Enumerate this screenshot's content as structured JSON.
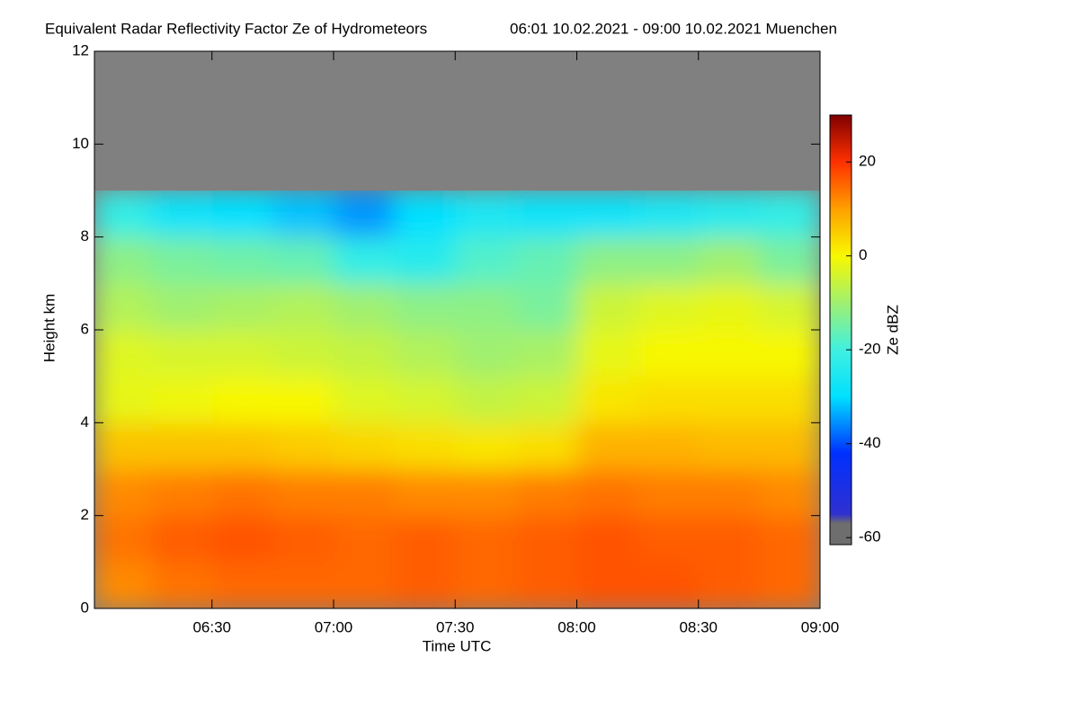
{
  "chart_data": {
    "type": "heatmap",
    "title": "Equivalent Radar Reflectivity Factor Ze of Hydrometeors",
    "subtitle": "06:01 10.02.2021 - 09:00 10.02.2021 Muenchen",
    "xlabel": "Time UTC",
    "ylabel": "Height km",
    "colorbar_label": "Ze dBZ",
    "xlim": [
      361,
      540
    ],
    "xticks": [
      {
        "value": 390,
        "label": "06:30"
      },
      {
        "value": 420,
        "label": "07:00"
      },
      {
        "value": 450,
        "label": "07:30"
      },
      {
        "value": 480,
        "label": "08:00"
      },
      {
        "value": 510,
        "label": "08:30"
      },
      {
        "value": 540,
        "label": "09:00"
      }
    ],
    "ylim": [
      0,
      12
    ],
    "yticks": [
      0,
      2,
      4,
      6,
      8,
      10,
      12
    ],
    "clim": [
      -61.5,
      30
    ],
    "cticks": [
      -60,
      -40,
      -20,
      0,
      20
    ],
    "missing_color": "#808080",
    "colorscale": [
      {
        "value": -61.5,
        "color": "#6e6e6e"
      },
      {
        "value": -57,
        "color": "#6e6e6e"
      },
      {
        "value": -55,
        "color": "#3030d0"
      },
      {
        "value": -42,
        "color": "#0030ff"
      },
      {
        "value": -30,
        "color": "#00e0ff"
      },
      {
        "value": -20,
        "color": "#40f0e0"
      },
      {
        "value": -10,
        "color": "#a0f070"
      },
      {
        "value": 0,
        "color": "#f8f800"
      },
      {
        "value": 10,
        "color": "#ffa000"
      },
      {
        "value": 20,
        "color": "#ff3000"
      },
      {
        "value": 30,
        "color": "#800000"
      }
    ],
    "xbins": [
      361,
      375,
      390,
      405,
      420,
      435,
      450,
      465,
      480,
      495,
      510,
      525,
      540
    ],
    "ybins": [
      0,
      1,
      2,
      3,
      4,
      5,
      6,
      7,
      8,
      9,
      10,
      11,
      12
    ],
    "z": [
      [
        12,
        14,
        15,
        15,
        15,
        16,
        15,
        16,
        17,
        17,
        16,
        15
      ],
      [
        14,
        16,
        17,
        16,
        15,
        16,
        15,
        16,
        17,
        16,
        16,
        15
      ],
      [
        12,
        13,
        14,
        13,
        13,
        12,
        12,
        13,
        14,
        13,
        13,
        12
      ],
      [
        6,
        6,
        6,
        5,
        4,
        3,
        2,
        3,
        8,
        8,
        7,
        7
      ],
      [
        -2,
        -1,
        0,
        0,
        -3,
        -4,
        -6,
        -5,
        2,
        3,
        3,
        3
      ],
      [
        -3,
        -4,
        -4,
        -5,
        -6,
        -8,
        -10,
        -9,
        -2,
        0,
        0,
        0
      ],
      [
        -8,
        -10,
        -9,
        -8,
        -10,
        -12,
        -12,
        -14,
        -5,
        -3,
        -2,
        -4
      ],
      [
        -12,
        -14,
        -15,
        -16,
        -22,
        -24,
        -18,
        -16,
        -12,
        -12,
        -10,
        -14
      ],
      [
        -22,
        -28,
        -30,
        -32,
        -35,
        -30,
        -26,
        -28,
        -28,
        -26,
        -24,
        -22
      ],
      [
        null,
        null,
        null,
        null,
        null,
        null,
        null,
        null,
        null,
        null,
        null,
        null
      ],
      [
        null,
        null,
        null,
        null,
        null,
        null,
        null,
        null,
        null,
        null,
        null,
        null
      ],
      [
        null,
        null,
        null,
        null,
        null,
        null,
        null,
        null,
        null,
        null,
        null,
        null
      ]
    ]
  }
}
